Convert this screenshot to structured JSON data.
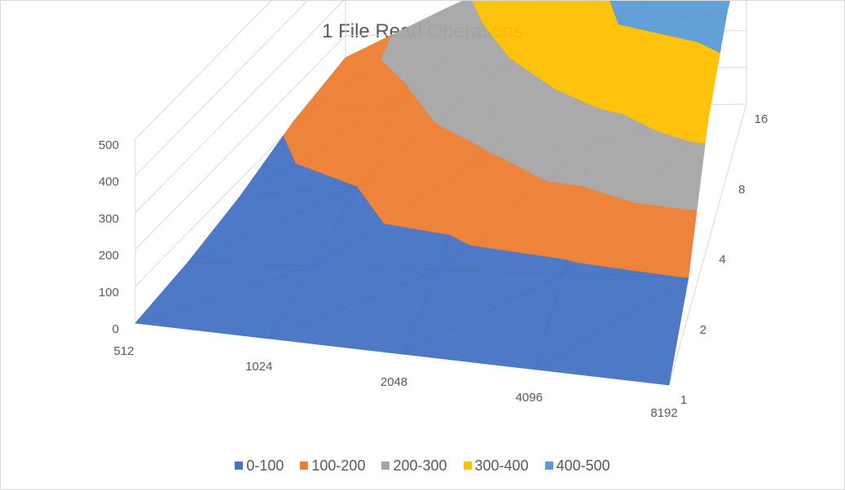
{
  "chart_data": {
    "type": "surface",
    "title": "1 File Read Operations",
    "x_categories": [
      "512",
      "1024",
      "2048",
      "4096",
      "8192"
    ],
    "depth_categories": [
      "1",
      "2",
      "4",
      "8",
      "16"
    ],
    "z_axis": {
      "ticks": [
        "0",
        "100",
        "200",
        "300",
        "400",
        "500"
      ],
      "range": [
        0,
        500
      ]
    },
    "bands": [
      {
        "name": "0-100",
        "color": "#4472C4"
      },
      {
        "name": "100-200",
        "color": "#ED7D31"
      },
      {
        "name": "200-300",
        "color": "#A5A5A5"
      },
      {
        "name": "300-400",
        "color": "#FFC000"
      },
      {
        "name": "400-500",
        "color": "#5B9BD5"
      }
    ],
    "legend_position": "bottom",
    "grid": true,
    "values": [
      [
        0,
        0,
        0,
        0,
        0
      ],
      [
        20,
        40,
        60,
        80,
        100
      ],
      [
        55,
        100,
        180,
        260,
        330
      ],
      [
        110,
        190,
        300,
        400,
        440
      ],
      [
        140,
        270,
        390,
        450,
        470
      ]
    ]
  }
}
